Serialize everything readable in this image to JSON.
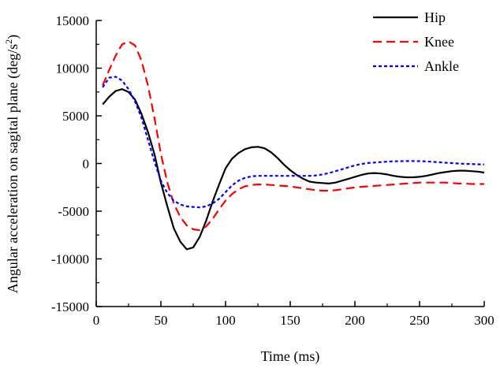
{
  "chart_data": {
    "type": "line",
    "title": "",
    "xlabel": "Time (ms)",
    "ylabel": "Angular acceleration on sagital plane (deg/s",
    "ylabel_superscript": "2",
    "ylabel_close": ")",
    "xlim": [
      0,
      300
    ],
    "ylim": [
      -15000,
      15000
    ],
    "xticks": [
      0,
      50,
      100,
      150,
      200,
      250,
      300
    ],
    "xtick_labels": [
      "0",
      "50",
      "100",
      "150",
      "200",
      "250",
      "300"
    ],
    "yticks": [
      -15000,
      -10000,
      -5000,
      0,
      5000,
      10000,
      15000
    ],
    "ytick_labels": [
      "-15000",
      "-10000",
      "-5000",
      "0",
      "5000",
      "10000",
      "15000"
    ],
    "grid": false,
    "legend_position": "top-right",
    "series": [
      {
        "name": "Hip",
        "color": "#000000",
        "dash": "solid",
        "points": [
          [
            5,
            6200
          ],
          [
            10,
            7000
          ],
          [
            15,
            7600
          ],
          [
            20,
            7800
          ],
          [
            25,
            7500
          ],
          [
            30,
            6700
          ],
          [
            35,
            5200
          ],
          [
            40,
            3300
          ],
          [
            45,
            1000
          ],
          [
            50,
            -2000
          ],
          [
            55,
            -4500
          ],
          [
            60,
            -6800
          ],
          [
            65,
            -8200
          ],
          [
            70,
            -9000
          ],
          [
            75,
            -8800
          ],
          [
            80,
            -7700
          ],
          [
            85,
            -6000
          ],
          [
            90,
            -4000
          ],
          [
            95,
            -2200
          ],
          [
            100,
            -500
          ],
          [
            105,
            500
          ],
          [
            110,
            1100
          ],
          [
            115,
            1500
          ],
          [
            120,
            1700
          ],
          [
            125,
            1750
          ],
          [
            130,
            1600
          ],
          [
            135,
            1200
          ],
          [
            140,
            600
          ],
          [
            145,
            -100
          ],
          [
            150,
            -700
          ],
          [
            155,
            -1200
          ],
          [
            160,
            -1600
          ],
          [
            165,
            -1900
          ],
          [
            170,
            -2000
          ],
          [
            175,
            -2050
          ],
          [
            180,
            -2100
          ],
          [
            185,
            -2000
          ],
          [
            190,
            -1800
          ],
          [
            195,
            -1600
          ],
          [
            200,
            -1400
          ],
          [
            205,
            -1200
          ],
          [
            210,
            -1050
          ],
          [
            215,
            -1000
          ],
          [
            220,
            -1050
          ],
          [
            225,
            -1150
          ],
          [
            230,
            -1300
          ],
          [
            235,
            -1400
          ],
          [
            240,
            -1450
          ],
          [
            245,
            -1450
          ],
          [
            250,
            -1400
          ],
          [
            255,
            -1300
          ],
          [
            260,
            -1150
          ],
          [
            265,
            -1000
          ],
          [
            270,
            -900
          ],
          [
            275,
            -800
          ],
          [
            280,
            -750
          ],
          [
            285,
            -750
          ],
          [
            290,
            -800
          ],
          [
            295,
            -850
          ],
          [
            300,
            -950
          ]
        ]
      },
      {
        "name": "Knee",
        "color": "#ff0000",
        "dash": "long-dash",
        "points": [
          [
            5,
            8200
          ],
          [
            10,
            9800
          ],
          [
            15,
            11300
          ],
          [
            20,
            12500
          ],
          [
            25,
            12800
          ],
          [
            30,
            12400
          ],
          [
            35,
            10800
          ],
          [
            40,
            8200
          ],
          [
            45,
            4800
          ],
          [
            50,
            1000
          ],
          [
            55,
            -2000
          ],
          [
            60,
            -4200
          ],
          [
            65,
            -5600
          ],
          [
            70,
            -6500
          ],
          [
            75,
            -6900
          ],
          [
            80,
            -7000
          ],
          [
            85,
            -6600
          ],
          [
            90,
            -5800
          ],
          [
            95,
            -4800
          ],
          [
            100,
            -3900
          ],
          [
            105,
            -3200
          ],
          [
            110,
            -2700
          ],
          [
            115,
            -2400
          ],
          [
            120,
            -2250
          ],
          [
            125,
            -2200
          ],
          [
            130,
            -2200
          ],
          [
            135,
            -2250
          ],
          [
            140,
            -2300
          ],
          [
            145,
            -2350
          ],
          [
            150,
            -2400
          ],
          [
            155,
            -2500
          ],
          [
            160,
            -2600
          ],
          [
            165,
            -2700
          ],
          [
            170,
            -2800
          ],
          [
            175,
            -2850
          ],
          [
            180,
            -2850
          ],
          [
            185,
            -2800
          ],
          [
            190,
            -2700
          ],
          [
            195,
            -2600
          ],
          [
            200,
            -2500
          ],
          [
            205,
            -2450
          ],
          [
            210,
            -2400
          ],
          [
            215,
            -2350
          ],
          [
            220,
            -2300
          ],
          [
            225,
            -2250
          ],
          [
            230,
            -2200
          ],
          [
            235,
            -2150
          ],
          [
            240,
            -2100
          ],
          [
            245,
            -2050
          ],
          [
            250,
            -2000
          ],
          [
            255,
            -2000
          ],
          [
            260,
            -2000
          ],
          [
            265,
            -2000
          ],
          [
            270,
            -2000
          ],
          [
            275,
            -2050
          ],
          [
            280,
            -2100
          ],
          [
            285,
            -2100
          ],
          [
            290,
            -2150
          ],
          [
            295,
            -2150
          ],
          [
            300,
            -2150
          ]
        ]
      },
      {
        "name": "Ankle",
        "color": "#0000ff",
        "dash": "short-dash",
        "points": [
          [
            5,
            8000
          ],
          [
            10,
            9000
          ],
          [
            15,
            9100
          ],
          [
            20,
            8700
          ],
          [
            25,
            7800
          ],
          [
            30,
            6500
          ],
          [
            35,
            4800
          ],
          [
            40,
            2500
          ],
          [
            45,
            200
          ],
          [
            50,
            -1800
          ],
          [
            55,
            -3100
          ],
          [
            60,
            -3900
          ],
          [
            65,
            -4300
          ],
          [
            70,
            -4500
          ],
          [
            75,
            -4550
          ],
          [
            80,
            -4600
          ],
          [
            85,
            -4500
          ],
          [
            90,
            -4200
          ],
          [
            95,
            -3700
          ],
          [
            100,
            -3000
          ],
          [
            105,
            -2300
          ],
          [
            110,
            -1800
          ],
          [
            115,
            -1500
          ],
          [
            120,
            -1350
          ],
          [
            125,
            -1300
          ],
          [
            130,
            -1300
          ],
          [
            135,
            -1300
          ],
          [
            140,
            -1300
          ],
          [
            145,
            -1300
          ],
          [
            150,
            -1300
          ],
          [
            155,
            -1300
          ],
          [
            160,
            -1300
          ],
          [
            165,
            -1300
          ],
          [
            170,
            -1250
          ],
          [
            175,
            -1150
          ],
          [
            180,
            -1000
          ],
          [
            185,
            -800
          ],
          [
            190,
            -600
          ],
          [
            195,
            -400
          ],
          [
            200,
            -200
          ],
          [
            205,
            -50
          ],
          [
            210,
            50
          ],
          [
            215,
            100
          ],
          [
            220,
            150
          ],
          [
            225,
            200
          ],
          [
            230,
            230
          ],
          [
            235,
            250
          ],
          [
            240,
            260
          ],
          [
            245,
            260
          ],
          [
            250,
            250
          ],
          [
            255,
            220
          ],
          [
            260,
            180
          ],
          [
            265,
            130
          ],
          [
            270,
            80
          ],
          [
            275,
            40
          ],
          [
            280,
            0
          ],
          [
            285,
            -30
          ],
          [
            290,
            -60
          ],
          [
            295,
            -80
          ],
          [
            300,
            -100
          ]
        ]
      }
    ]
  }
}
